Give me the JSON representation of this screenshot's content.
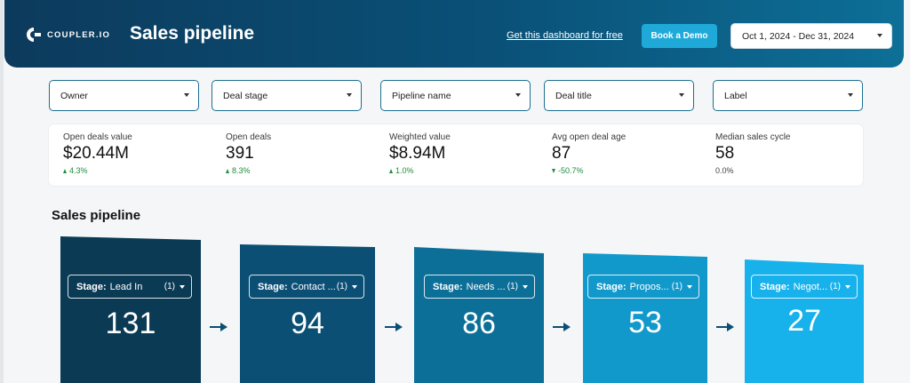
{
  "header": {
    "logo_text": "COUPLER.IO",
    "title": "Sales pipeline",
    "dashboard_link": "Get this dashboard for free",
    "demo_button": "Book a Demo",
    "date_range": "Oct 1, 2024 - Dec 31, 2024"
  },
  "filters": [
    "Owner",
    "Deal stage",
    "Pipeline name",
    "Deal title",
    "Label"
  ],
  "kpis": [
    {
      "label": "Open deals value",
      "value": "$20.44M",
      "delta": "4.3%",
      "direction": "up"
    },
    {
      "label": "Open deals",
      "value": "391",
      "delta": "8.3%",
      "direction": "up"
    },
    {
      "label": "Weighted value",
      "value": "$8.94M",
      "delta": "1.0%",
      "direction": "up"
    },
    {
      "label": "Avg open deal age",
      "value": "87",
      "delta": "-50.7%",
      "direction": "down"
    },
    {
      "label": "Median sales cycle",
      "value": "58",
      "delta": "0.0%",
      "direction": "none"
    }
  ],
  "section_title": "Sales pipeline",
  "stage_prefix": "Stage:",
  "stages": [
    {
      "name": "Lead In",
      "count": "(1)",
      "value": "131",
      "color": "#0b3a55"
    },
    {
      "name": "Contact ...",
      "count": "(1)",
      "value": "94",
      "color": "#0b4f75"
    },
    {
      "name": "Needs ...",
      "count": "(1)",
      "value": "86",
      "color": "#0c6f98"
    },
    {
      "name": "Propos...",
      "count": "(1)",
      "value": "53",
      "color": "#1299cc"
    },
    {
      "name": "Negot...",
      "count": "(1)",
      "value": "27",
      "color": "#17b2ec"
    }
  ],
  "colors": {
    "header_start": "#0c3a5c",
    "header_end": "#0d6f97",
    "accent": "#1fa9d8",
    "positive": "#1e8e3e"
  }
}
